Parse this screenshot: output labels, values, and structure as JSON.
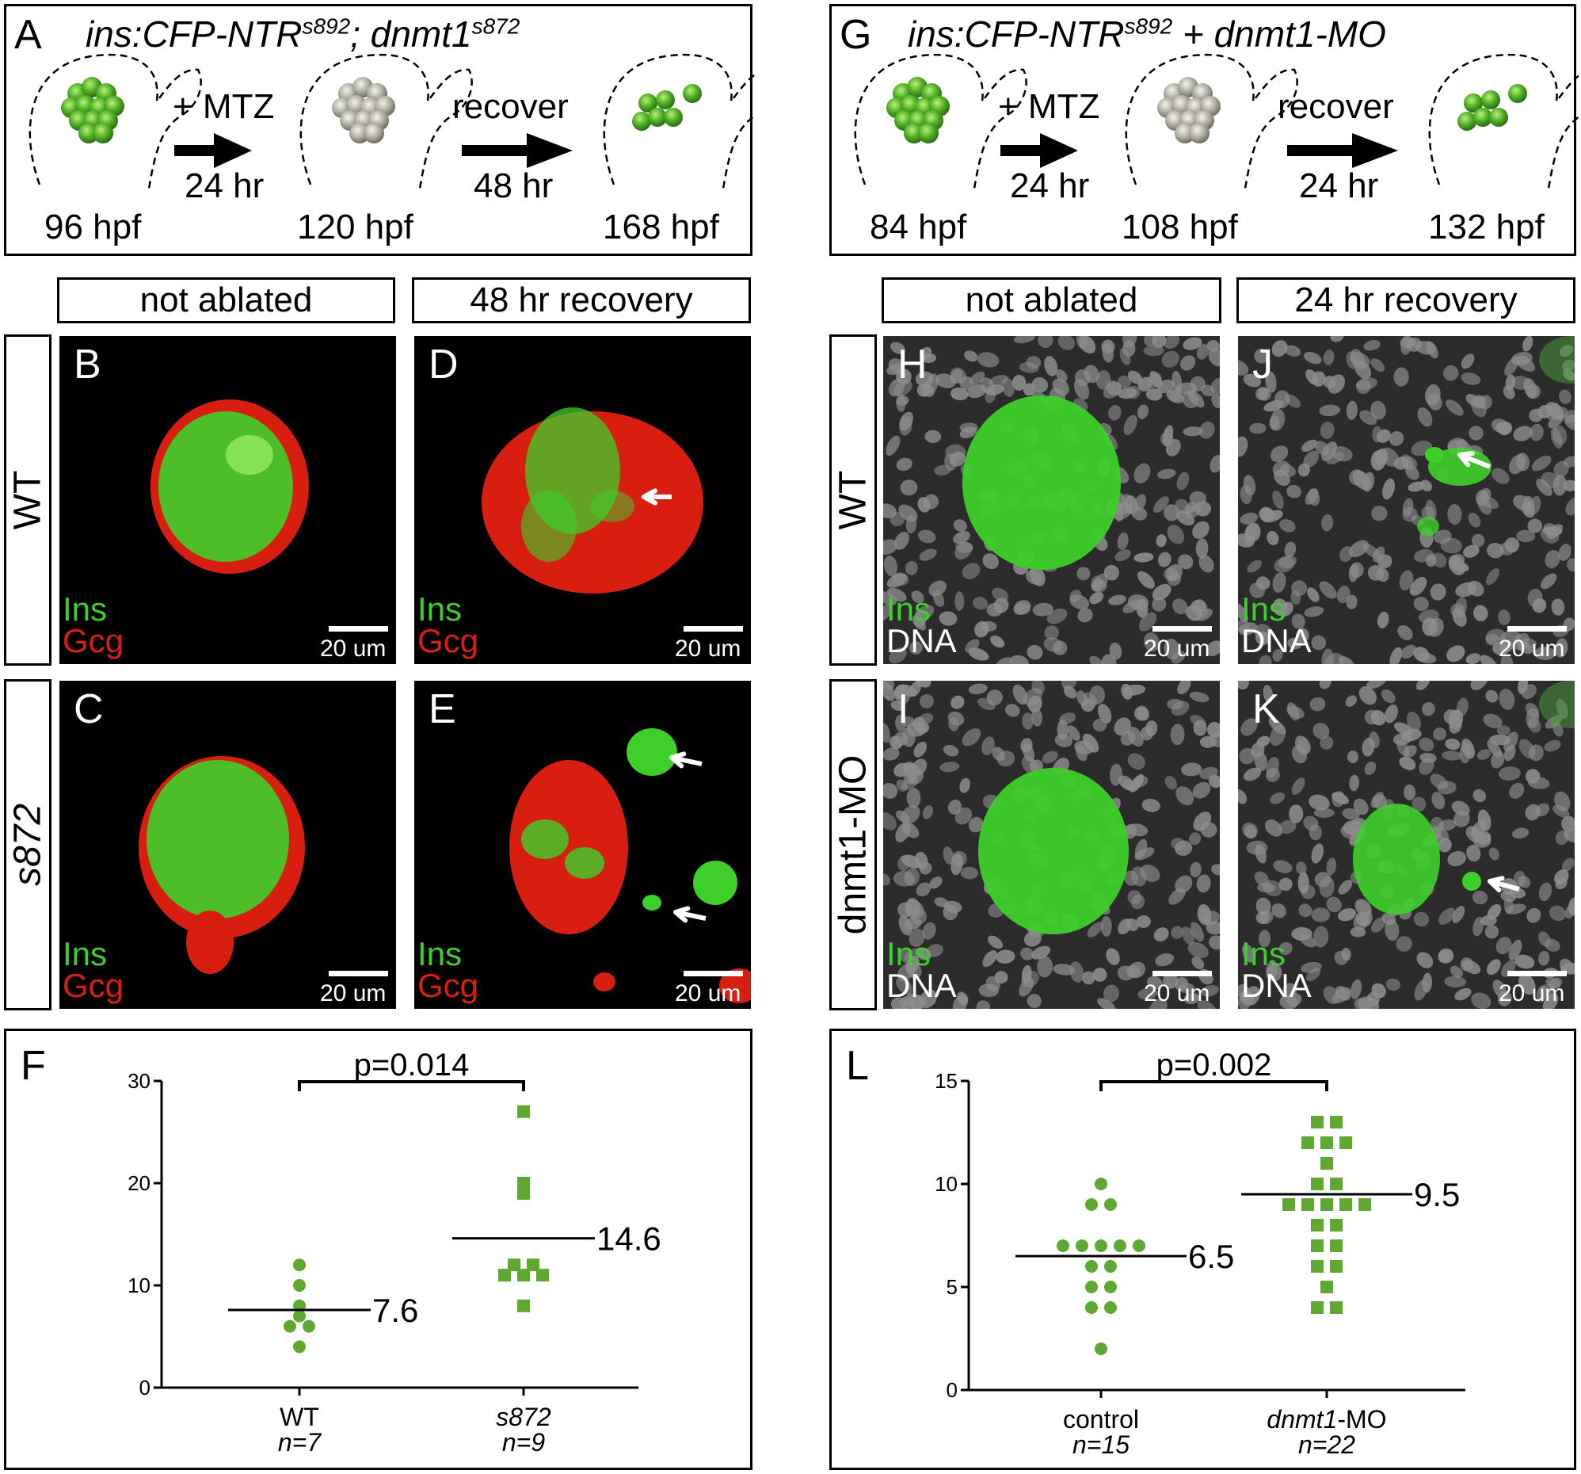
{
  "figure": {
    "panel_A": {
      "letter": "A",
      "title_pre": "ins:CFP-NTR",
      "title_sup1": "s892",
      "title_mid": "; dnmt1",
      "title_sup2": "s872",
      "steps": [
        "96 hpf",
        "120 hpf",
        "168 hpf"
      ],
      "arrow1_top": "+ MTZ",
      "arrow1_bottom": "24 hr",
      "arrow2_top": "recover",
      "arrow2_bottom": "48 hr"
    },
    "panel_G": {
      "letter": "G",
      "title_pre": "ins:CFP-NTR",
      "title_sup1": "s892",
      "title_mid": " + dnmt1-MO",
      "steps": [
        "84 hpf",
        "108 hpf",
        "132 hpf"
      ],
      "arrow1_top": "+ MTZ",
      "arrow1_bottom": "24 hr",
      "arrow2_top": "recover",
      "arrow2_bottom": "24 hr"
    },
    "left_headers": [
      "not ablated",
      "48 hr recovery"
    ],
    "right_headers": [
      "not ablated",
      "24 hr recovery"
    ],
    "left_rows": [
      "WT",
      "s872"
    ],
    "right_rows": [
      "WT",
      "dnmt1-MO"
    ],
    "micrographs": {
      "B": {
        "letter": "B",
        "stain1": "Ins",
        "stain2": "Gcg",
        "scale": "20 um"
      },
      "C": {
        "letter": "C",
        "stain1": "Ins",
        "stain2": "Gcg",
        "scale": "20 um"
      },
      "D": {
        "letter": "D",
        "stain1": "Ins",
        "stain2": "Gcg",
        "scale": "20 um"
      },
      "E": {
        "letter": "E",
        "stain1": "Ins",
        "stain2": "Gcg",
        "scale": "20 um"
      },
      "H": {
        "letter": "H",
        "stain1": "Ins",
        "stain2": "DNA",
        "scale": "20 um"
      },
      "I": {
        "letter": "I",
        "stain1": "Ins",
        "stain2": "DNA",
        "scale": "20 um"
      },
      "J": {
        "letter": "J",
        "stain1": "Ins",
        "stain2": "DNA",
        "scale": "20 um"
      },
      "K": {
        "letter": "K",
        "stain1": "Ins",
        "stain2": "DNA",
        "scale": "20 um"
      }
    },
    "colors": {
      "ins": "#3ecf2a",
      "gcg": "#d81e10",
      "dna": "#9a9a9a",
      "marker": "#5fa832"
    }
  },
  "chart_data": [
    {
      "panel": "F",
      "type": "scatter",
      "ylim": [
        0,
        30
      ],
      "yticks": [
        0,
        10,
        20,
        30
      ],
      "pvalue": "p=0.014",
      "groups": [
        {
          "name": "WT",
          "n_label": "n=7",
          "marker": "circle",
          "values": [
            12,
            10,
            8,
            7,
            6,
            6,
            4
          ],
          "mean": 7.6,
          "mean_label": "7.6"
        },
        {
          "name": "s872",
          "n_label": "n=9",
          "marker": "square",
          "italic": true,
          "values": [
            27,
            20,
            19,
            12,
            12,
            11,
            11,
            11,
            8
          ],
          "mean": 14.6,
          "mean_label": "14.6"
        }
      ]
    },
    {
      "panel": "L",
      "type": "scatter",
      "ylim": [
        0,
        15
      ],
      "yticks": [
        0,
        5,
        10,
        15
      ],
      "pvalue": "p=0.002",
      "groups": [
        {
          "name": "control",
          "n_label": "n=15",
          "marker": "circle",
          "values": [
            10,
            9,
            9,
            7,
            7,
            7,
            7,
            7,
            6,
            6,
            5,
            5,
            4,
            4,
            2
          ],
          "mean": 6.5,
          "mean_label": "6.5"
        },
        {
          "name": "dnmt1-MO",
          "n_label": "n=22",
          "marker": "square",
          "values": [
            13,
            13,
            12,
            12,
            12,
            11,
            10,
            10,
            9,
            9,
            9,
            9,
            9,
            8,
            8,
            7,
            7,
            6,
            6,
            5,
            4,
            4
          ],
          "mean": 9.5,
          "mean_label": "9.5"
        }
      ]
    }
  ]
}
